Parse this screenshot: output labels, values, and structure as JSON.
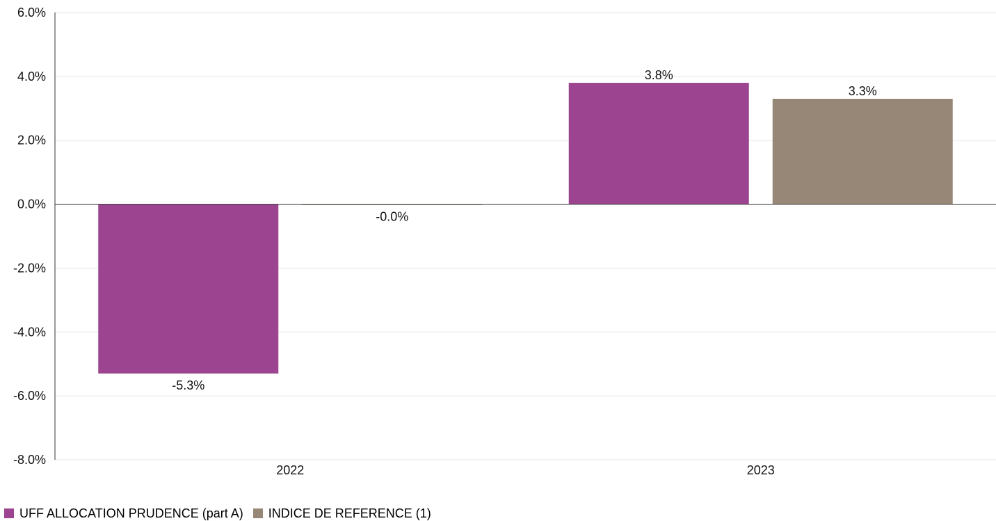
{
  "chart_data": {
    "type": "bar",
    "categories": [
      "2022",
      "2023"
    ],
    "series": [
      {
        "name": "UFF ALLOCATION PRUDENCE (part A)",
        "values": [
          -5.3,
          3.8
        ],
        "labels": [
          "-5.3%",
          "3.8%"
        ],
        "color": "#9c448f"
      },
      {
        "name": "INDICE DE REFERENCE (1)",
        "values": [
          -0.02,
          3.3
        ],
        "labels": [
          "-0.0%",
          "3.3%"
        ],
        "color": "#978776"
      }
    ],
    "ylim": [
      -8,
      6
    ],
    "yticks": [
      6,
      4,
      2,
      0,
      -2,
      -4,
      -6,
      -8
    ],
    "ytick_labels": [
      "6.0%",
      "4.0%",
      "2.0%",
      "0.0%",
      "-2.0%",
      "-4.0%",
      "-6.0%",
      "-8.0%"
    ],
    "grid": true,
    "legend_position": "bottom-left"
  }
}
